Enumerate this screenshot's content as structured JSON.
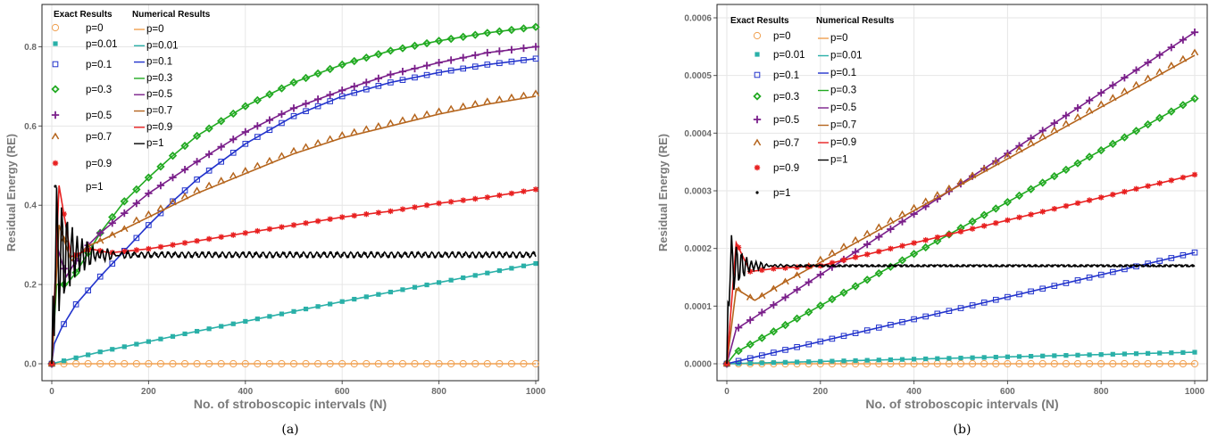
{
  "chart_data": [
    {
      "type": "line",
      "caption": "(a)",
      "xlabel": "No. of stroboscopic intervals (N)",
      "ylabel": "Residual Energy (RE)",
      "xlim": [
        0,
        1000
      ],
      "ylim": [
        0,
        0.9
      ],
      "xticks": [
        0,
        200,
        400,
        600,
        800,
        1000
      ],
      "xtick_labels": [
        "0",
        "200",
        "400",
        "600",
        "800",
        "1000"
      ],
      "yticks": [
        0,
        0.2,
        0.4,
        0.6,
        0.8
      ],
      "ytick_labels": [
        "0.0",
        "0.2",
        "0.4",
        "0.6",
        "0.8"
      ],
      "grid": true,
      "legend": {
        "placement": "top-left",
        "exact_title": "Exact Results",
        "numerical_title": "Numerical Results",
        "exact_labels": [
          "p=0",
          "p=0.01",
          "p=0.1",
          "p=0.3",
          "p=0.5",
          "p=0.7",
          "p=0.9",
          "p=1"
        ],
        "numerical_labels": [
          "p=0",
          "p=0.01",
          "p=0.1",
          "p=0.3",
          "p=0.5",
          "p=0.7",
          "p=0.9",
          "p=1"
        ]
      },
      "series": [
        {
          "name": "p=0",
          "color": "#f0a050",
          "marker": "circle",
          "x": [
            0,
            1000
          ],
          "y": [
            0,
            0
          ]
        },
        {
          "name": "p=0.01",
          "color": "#2ab0a8",
          "marker": "square-filled",
          "x": [
            0,
            100,
            200,
            300,
            400,
            500,
            600,
            700,
            800,
            900,
            1000
          ],
          "y": [
            0,
            0.03,
            0.056,
            0.082,
            0.107,
            0.132,
            0.157,
            0.181,
            0.205,
            0.229,
            0.253
          ]
        },
        {
          "name": "p=0.1",
          "color": "#2233cc",
          "marker": "square-open",
          "x": [
            0,
            5,
            20,
            50,
            100,
            150,
            200,
            250,
            300,
            350,
            400,
            500,
            600,
            700,
            800,
            900,
            1000
          ],
          "y": [
            0,
            0.05,
            0.09,
            0.15,
            0.22,
            0.285,
            0.35,
            0.41,
            0.465,
            0.51,
            0.555,
            0.625,
            0.675,
            0.71,
            0.735,
            0.755,
            0.77
          ]
        },
        {
          "name": "p=0.3",
          "color": "#22aa22",
          "marker": "diamond",
          "x": [
            0,
            10,
            30,
            50,
            100,
            150,
            200,
            250,
            300,
            400,
            500,
            600,
            700,
            800,
            900,
            1000
          ],
          "y": [
            0,
            0.2,
            0.2,
            0.23,
            0.33,
            0.41,
            0.47,
            0.525,
            0.575,
            0.65,
            0.71,
            0.755,
            0.79,
            0.815,
            0.835,
            0.85
          ]
        },
        {
          "name": "p=0.5",
          "color": "#7a1f8a",
          "marker": "plus",
          "x": [
            0,
            10,
            30,
            60,
            100,
            150,
            200,
            250,
            300,
            400,
            500,
            600,
            700,
            800,
            900,
            1000
          ],
          "y": [
            0,
            0.3,
            0.22,
            0.28,
            0.33,
            0.38,
            0.43,
            0.47,
            0.51,
            0.585,
            0.645,
            0.69,
            0.73,
            0.76,
            0.785,
            0.8
          ]
        },
        {
          "name": "p=0.7",
          "color": "#b5651d",
          "marker": "caret",
          "x": [
            0,
            15,
            40,
            80,
            100,
            200,
            300,
            400,
            500,
            600,
            700,
            800,
            900,
            1000
          ],
          "y": [
            0,
            0.35,
            0.26,
            0.3,
            0.31,
            0.37,
            0.43,
            0.48,
            0.53,
            0.57,
            0.6,
            0.63,
            0.655,
            0.675
          ]
        },
        {
          "name": "p=0.9",
          "color": "#e82020",
          "marker": "star",
          "x": [
            0,
            15,
            40,
            80,
            120,
            200,
            300,
            400,
            500,
            600,
            700,
            800,
            900,
            1000
          ],
          "y": [
            0,
            0.45,
            0.27,
            0.29,
            0.28,
            0.29,
            0.31,
            0.33,
            0.35,
            0.37,
            0.385,
            0.405,
            0.42,
            0.44
          ]
        },
        {
          "name": "p=1",
          "color": "#000000",
          "marker": "dot",
          "x": [
            0,
            1000
          ],
          "y": [
            0.275,
            0.275
          ],
          "oscillation": {
            "peak": 0.52
          }
        }
      ]
    },
    {
      "type": "line",
      "caption": "(b)",
      "xlabel": "No. of stroboscopic intervals (N)",
      "ylabel": "Residual Energy (RE)",
      "xlim": [
        0,
        1000
      ],
      "ylim": [
        0,
        0.0006
      ],
      "xticks": [
        0,
        200,
        400,
        600,
        800,
        1000
      ],
      "xtick_labels": [
        "0",
        "200",
        "400",
        "600",
        "800",
        "1000"
      ],
      "yticks": [
        0,
        0.0001,
        0.0002,
        0.0003,
        0.0004,
        0.0005,
        0.0006
      ],
      "ytick_labels": [
        "0.0000",
        "0.0001",
        "0.0002",
        "0.0003",
        "0.0004",
        "0.0005",
        "0.0006"
      ],
      "grid": true,
      "legend": {
        "placement": "top-left",
        "exact_title": "Exact Results",
        "numerical_title": "Numerical Results",
        "exact_labels": [
          "p=0",
          "p=0.01",
          "p=0.1",
          "p=0.3",
          "p=0.5",
          "p=0.7",
          "p=0.9",
          "p=1"
        ],
        "numerical_labels": [
          "p=0",
          "p=0.01",
          "p=0.1",
          "p=0.3",
          "p=0.5",
          "p=0.7",
          "p=0.9",
          "p=1"
        ]
      },
      "series": [
        {
          "name": "p=0",
          "color": "#f0a050",
          "marker": "circle",
          "x": [
            0,
            1000
          ],
          "y": [
            0,
            0
          ]
        },
        {
          "name": "p=0.01",
          "color": "#2ab0a8",
          "marker": "square-filled",
          "x": [
            0,
            1000
          ],
          "y": [
            0,
            2e-05
          ]
        },
        {
          "name": "p=0.1",
          "color": "#2233cc",
          "marker": "square-open",
          "x": [
            0,
            1000
          ],
          "y": [
            0,
            0.000193
          ]
        },
        {
          "name": "p=0.3",
          "color": "#22aa22",
          "marker": "diamond",
          "x": [
            0,
            20,
            1000
          ],
          "y": [
            0,
            2e-05,
            0.00046
          ]
        },
        {
          "name": "p=0.5",
          "color": "#7a1f8a",
          "marker": "plus",
          "x": [
            0,
            20,
            1000
          ],
          "y": [
            0,
            6e-05,
            0.000575
          ]
        },
        {
          "name": "p=0.7",
          "color": "#b5651d",
          "marker": "caret",
          "x": [
            0,
            20,
            60,
            120,
            1000
          ],
          "y": [
            0,
            0.00013,
            0.00011,
            0.00014,
            0.000535
          ]
        },
        {
          "name": "p=0.9",
          "color": "#e82020",
          "marker": "star",
          "x": [
            0,
            20,
            50,
            100,
            200,
            1000
          ],
          "y": [
            0,
            0.00021,
            0.00016,
            0.000165,
            0.00017,
            0.000328
          ]
        },
        {
          "name": "p=1",
          "color": "#000000",
          "marker": "dot",
          "x": [
            0,
            1000
          ],
          "y": [
            0.00017,
            0.00017
          ],
          "oscillation": {
            "peak": 0.000255
          }
        }
      ]
    }
  ]
}
